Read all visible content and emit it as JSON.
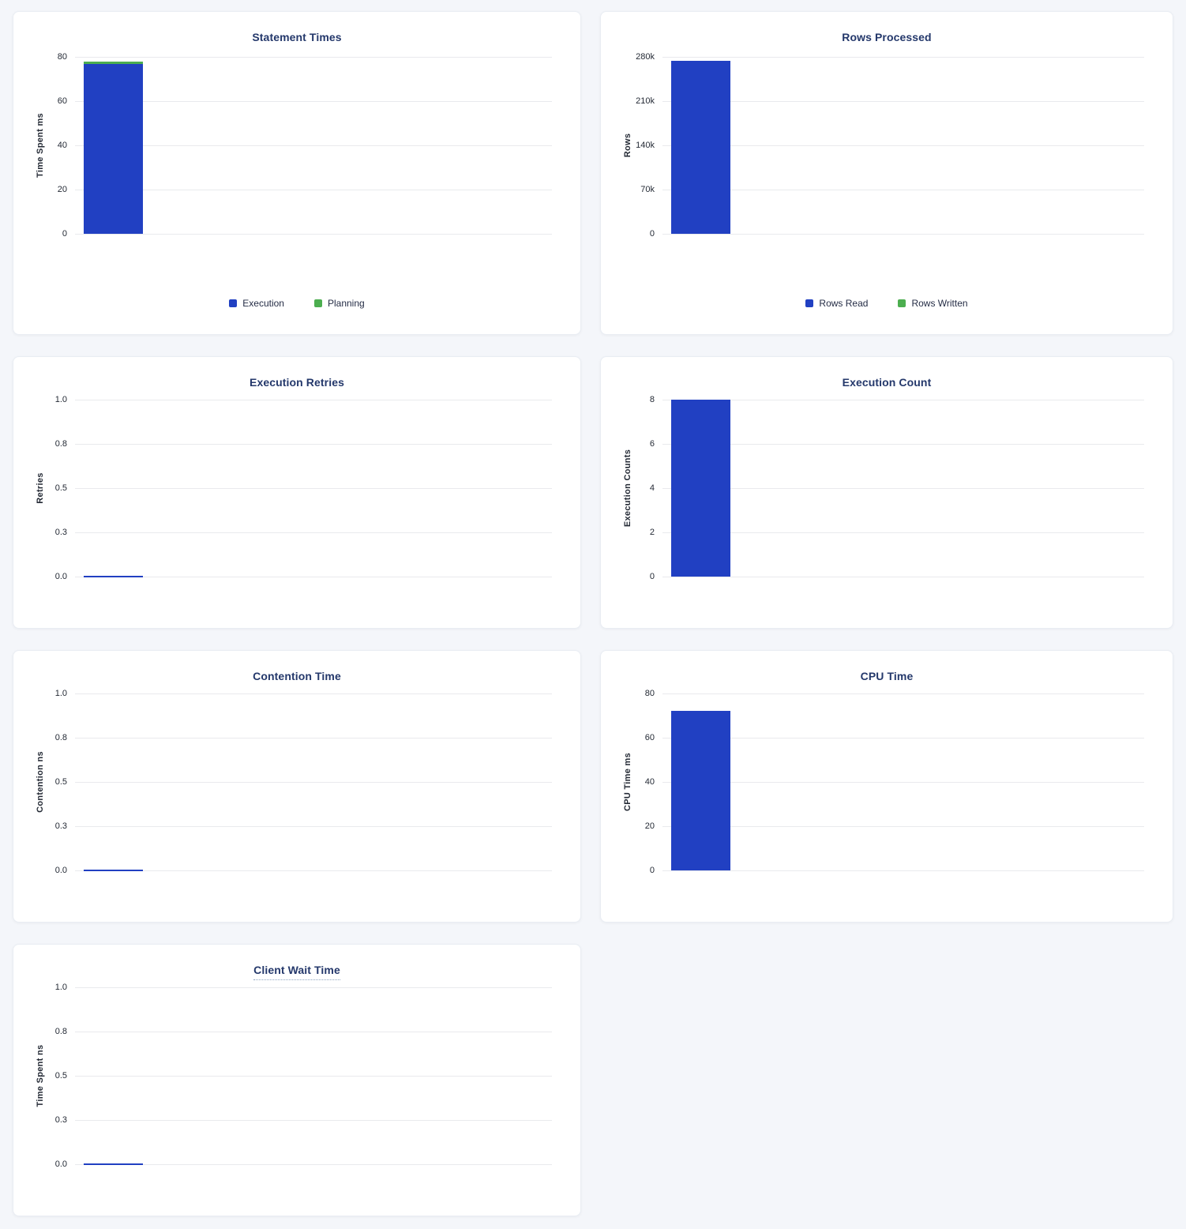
{
  "page": {
    "background_color": "#f4f6fa",
    "panel_background": "#ffffff",
    "title_color": "#24386b",
    "gridline_color": "#e9eaed",
    "tick_color": "#242a35"
  },
  "colors": {
    "series_blue": "#2140c2",
    "series_green": "#4cae4f"
  },
  "chart_data": [
    {
      "type": "bar",
      "title": "Statement Times",
      "ylabel": "Time Spent ms",
      "ylim": [
        0,
        80
      ],
      "yticks": [
        "0",
        "20",
        "40",
        "60",
        "80"
      ],
      "categories": [
        ""
      ],
      "stacked": true,
      "grid": true,
      "legend_position": "bottom",
      "series": [
        {
          "name": "Execution",
          "color": "#2140c2",
          "values": [
            76.7
          ]
        },
        {
          "name": "Planning",
          "color": "#4cae4f",
          "values": [
            1.0
          ]
        }
      ]
    },
    {
      "type": "bar",
      "title": "Rows Processed",
      "ylabel": "Rows",
      "ylim": [
        0,
        280000
      ],
      "yticks": [
        "0",
        "70k",
        "140k",
        "210k",
        "280k"
      ],
      "categories": [
        ""
      ],
      "stacked": true,
      "grid": true,
      "legend_position": "bottom",
      "series": [
        {
          "name": "Rows Read",
          "color": "#2140c2",
          "values": [
            274000
          ]
        },
        {
          "name": "Rows Written",
          "color": "#4cae4f",
          "values": [
            0
          ]
        }
      ]
    },
    {
      "type": "bar",
      "title": "Execution Retries",
      "ylabel": "Retries",
      "ylim": [
        0,
        1
      ],
      "yticks": [
        "0.0",
        "0.3",
        "0.5",
        "0.8",
        "1.0"
      ],
      "categories": [
        ""
      ],
      "stacked": true,
      "grid": true,
      "legend_position": "none",
      "series": [
        {
          "name": "Retries",
          "color": "#2140c2",
          "values": [
            0
          ]
        }
      ]
    },
    {
      "type": "bar",
      "title": "Execution Count",
      "ylabel": "Execution Counts",
      "ylim": [
        0,
        8
      ],
      "yticks": [
        "0",
        "2",
        "4",
        "6",
        "8"
      ],
      "categories": [
        ""
      ],
      "stacked": true,
      "grid": true,
      "legend_position": "none",
      "series": [
        {
          "name": "Execution Count",
          "color": "#2140c2",
          "values": [
            8
          ]
        }
      ]
    },
    {
      "type": "bar",
      "title": "Contention Time",
      "ylabel": "Contention ns",
      "ylim": [
        0,
        1
      ],
      "yticks": [
        "0.0",
        "0.3",
        "0.5",
        "0.8",
        "1.0"
      ],
      "categories": [
        ""
      ],
      "stacked": true,
      "grid": true,
      "legend_position": "none",
      "series": [
        {
          "name": "Contention",
          "color": "#2140c2",
          "values": [
            0
          ]
        }
      ]
    },
    {
      "type": "bar",
      "title": "CPU Time",
      "ylabel": "CPU Time ms",
      "ylim": [
        0,
        80
      ],
      "yticks": [
        "0",
        "20",
        "40",
        "60",
        "80"
      ],
      "categories": [
        ""
      ],
      "stacked": true,
      "grid": true,
      "legend_position": "none",
      "series": [
        {
          "name": "CPU Time",
          "color": "#2140c2",
          "values": [
            72
          ]
        }
      ]
    },
    {
      "type": "bar",
      "title": "Client Wait Time",
      "title_underlined": true,
      "ylabel": "Time Spent ns",
      "ylim": [
        0,
        1
      ],
      "yticks": [
        "0.0",
        "0.3",
        "0.5",
        "0.8",
        "1.0"
      ],
      "categories": [
        ""
      ],
      "stacked": true,
      "grid": true,
      "legend_position": "none",
      "series": [
        {
          "name": "Client Wait",
          "color": "#2140c2",
          "values": [
            0
          ]
        }
      ]
    }
  ]
}
